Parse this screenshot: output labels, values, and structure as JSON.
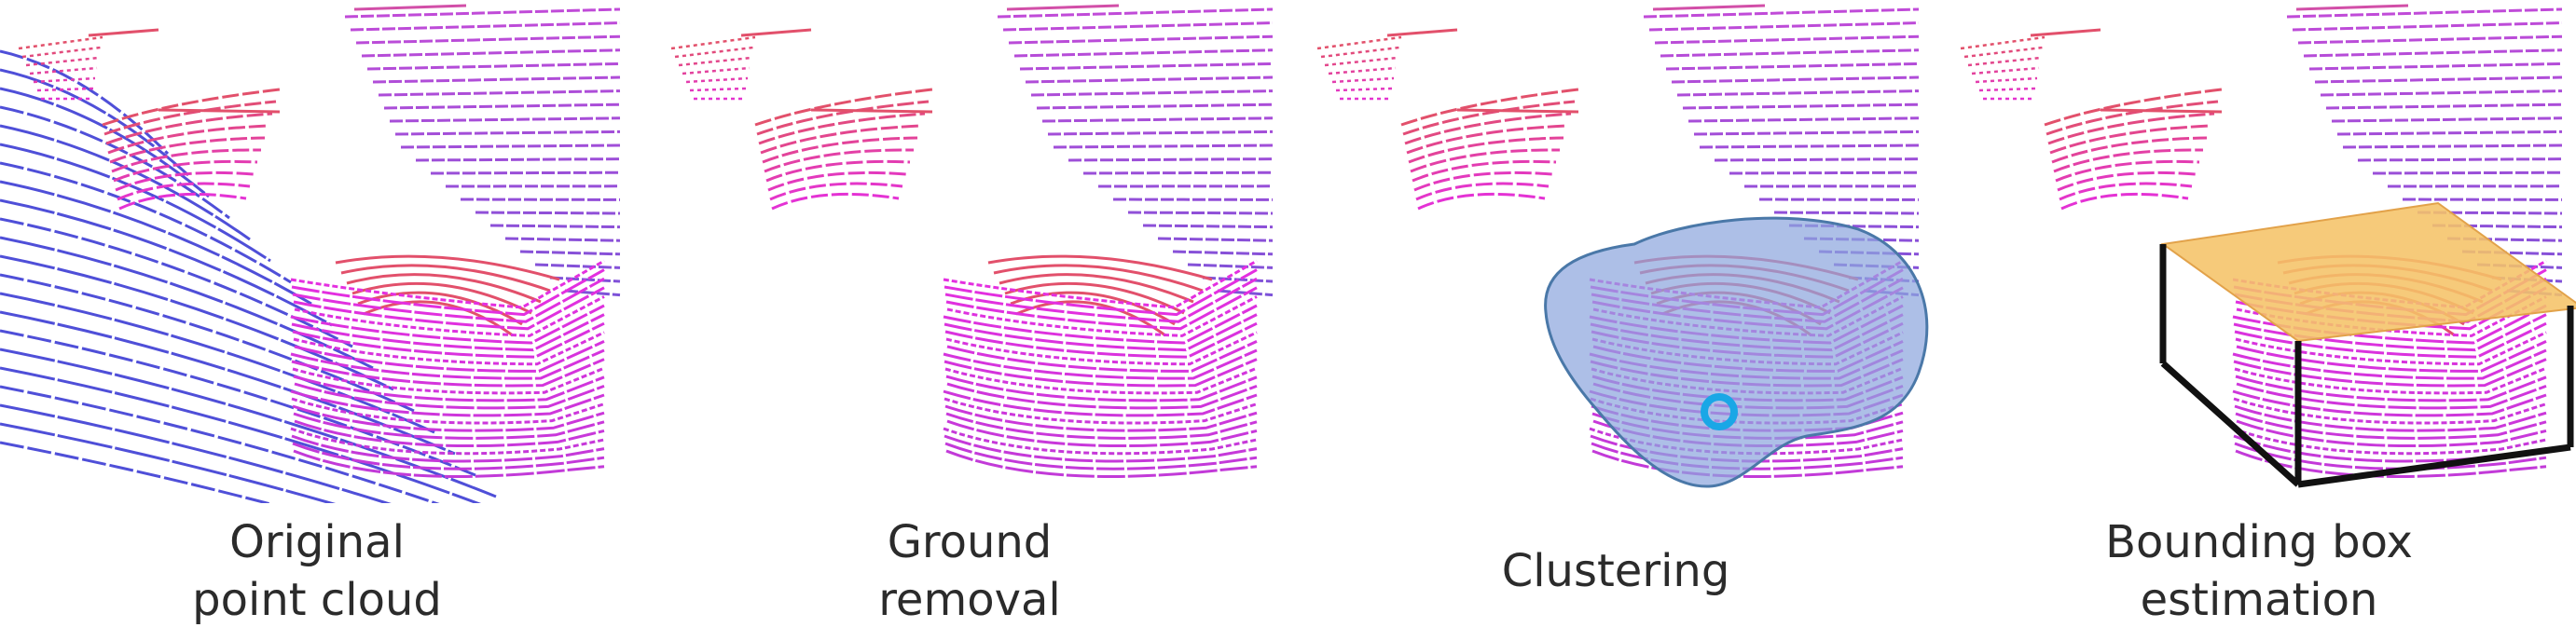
{
  "panels": [
    {
      "id": "original",
      "caption_lines": [
        "Original",
        "point cloud"
      ],
      "stage": "original"
    },
    {
      "id": "ground",
      "caption_lines": [
        "Ground",
        "removal"
      ],
      "stage": "ground_removed"
    },
    {
      "id": "cluster",
      "caption_lines": [
        "Clustering"
      ],
      "stage": "clustered"
    },
    {
      "id": "bbox",
      "caption_lines": [
        "Bounding box",
        "estimation"
      ],
      "stage": "box"
    }
  ],
  "colors": {
    "background": "#ffffff",
    "ground_scanline": "#4f4fd8",
    "wall_scanline": "#a24be0",
    "car_body": "#e42fe0",
    "car_roof": "#e2506b",
    "cluster_fill": "#8ea6de",
    "cluster_stroke": "#4a78a8",
    "cluster_marker": "#19a7e6",
    "box_top_fill": "#f5c368",
    "box_edge": "#111111",
    "caption_text": "#2b2b2b"
  }
}
